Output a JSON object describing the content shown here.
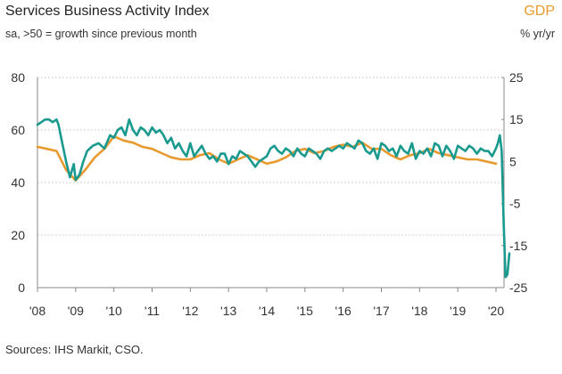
{
  "chart_data": {
    "type": "line",
    "title": "Services Business Activity Index",
    "subtitle": "sa, >50 = growth since previous month",
    "right_axis_title": "GDP",
    "right_axis_subtitle": "% yr/yr",
    "source": "Sources: IHS Markit, CSO.",
    "x_ticks": [
      "'08",
      "'09",
      "'10",
      "'11",
      "'12",
      "'13",
      "'14",
      "'15",
      "'16",
      "'17",
      "'18",
      "'19",
      "'20"
    ],
    "xlim": [
      2008,
      2020.4
    ],
    "left_axis": {
      "ylim": [
        0,
        80
      ],
      "ticks": [
        "0",
        "20",
        "40",
        "60",
        "80"
      ]
    },
    "right_axis": {
      "ylim": [
        -25,
        25
      ],
      "ticks": [
        "-25",
        "-15",
        "-5",
        "5",
        "15",
        "25"
      ]
    },
    "series": [
      {
        "name": "Services Business Activity Index",
        "axis": "left",
        "color": "#1a9a8e",
        "x": [
          2008.0,
          2008.1,
          2008.2,
          2008.3,
          2008.4,
          2008.5,
          2008.55,
          2008.65,
          2008.75,
          2008.85,
          2008.95,
          2009.0,
          2009.1,
          2009.2,
          2009.3,
          2009.45,
          2009.6,
          2009.75,
          2009.9,
          2010.0,
          2010.1,
          2010.2,
          2010.3,
          2010.4,
          2010.5,
          2010.6,
          2010.7,
          2010.8,
          2010.9,
          2011.0,
          2011.1,
          2011.2,
          2011.3,
          2011.4,
          2011.5,
          2011.6,
          2011.7,
          2011.8,
          2011.9,
          2012.0,
          2012.1,
          2012.2,
          2012.3,
          2012.4,
          2012.5,
          2012.6,
          2012.7,
          2012.8,
          2012.9,
          2013.0,
          2013.1,
          2013.2,
          2013.3,
          2013.4,
          2013.5,
          2013.6,
          2013.7,
          2013.8,
          2013.9,
          2014.0,
          2014.1,
          2014.2,
          2014.3,
          2014.4,
          2014.5,
          2014.6,
          2014.7,
          2014.8,
          2014.9,
          2015.0,
          2015.1,
          2015.2,
          2015.3,
          2015.4,
          2015.5,
          2015.6,
          2015.7,
          2015.8,
          2015.9,
          2016.0,
          2016.1,
          2016.2,
          2016.3,
          2016.4,
          2016.5,
          2016.6,
          2016.7,
          2016.8,
          2016.9,
          2017.0,
          2017.1,
          2017.2,
          2017.3,
          2017.4,
          2017.5,
          2017.6,
          2017.7,
          2017.8,
          2017.9,
          2018.0,
          2018.1,
          2018.2,
          2018.3,
          2018.4,
          2018.5,
          2018.6,
          2018.7,
          2018.8,
          2018.9,
          2019.0,
          2019.1,
          2019.2,
          2019.3,
          2019.4,
          2019.5,
          2019.6,
          2019.7,
          2019.8,
          2019.9,
          2020.0,
          2020.05,
          2020.1,
          2020.15,
          2020.2,
          2020.25,
          2020.3,
          2020.35
        ],
        "values": [
          62,
          63,
          64,
          64,
          63,
          64,
          62,
          55,
          48,
          42,
          47,
          41,
          43,
          48,
          52,
          54,
          55,
          53,
          58,
          57,
          60,
          61,
          58,
          64,
          60,
          58,
          61,
          60,
          58,
          61,
          59,
          60,
          58,
          55,
          57,
          53,
          55,
          52,
          50,
          55,
          50,
          52,
          54,
          51,
          49,
          50,
          48,
          51,
          51,
          47,
          50,
          49,
          52,
          51,
          50,
          48,
          46,
          48,
          49,
          50,
          53,
          54,
          52,
          51,
          53,
          52,
          50,
          53,
          51,
          50,
          53,
          52,
          51,
          49,
          52,
          53,
          52,
          53,
          54,
          53,
          55,
          54,
          53,
          56,
          55,
          52,
          51,
          53,
          49,
          55,
          54,
          52,
          53,
          50,
          54,
          52,
          51,
          55,
          49,
          52,
          51,
          53,
          50,
          55,
          54,
          50,
          54,
          52,
          49,
          54,
          53,
          52,
          54,
          53,
          51,
          53,
          52,
          52,
          50,
          53,
          55,
          58,
          52,
          25,
          4,
          5,
          13
        ]
      },
      {
        "name": "GDP",
        "axis": "right",
        "color": "#e89a2e",
        "x": [
          2008.0,
          2008.25,
          2008.5,
          2008.75,
          2009.0,
          2009.25,
          2009.5,
          2009.75,
          2010.0,
          2010.25,
          2010.5,
          2010.75,
          2011.0,
          2011.25,
          2011.5,
          2011.75,
          2012.0,
          2012.25,
          2012.5,
          2012.75,
          2013.0,
          2013.25,
          2013.5,
          2013.75,
          2014.0,
          2014.25,
          2014.5,
          2014.75,
          2015.0,
          2015.25,
          2015.5,
          2015.75,
          2016.0,
          2016.25,
          2016.5,
          2016.75,
          2017.0,
          2017.25,
          2017.5,
          2017.75,
          2018.0,
          2018.25,
          2018.5,
          2018.75,
          2019.0,
          2019.25,
          2019.5,
          2019.75,
          2020.0
        ],
        "values": [
          8.5,
          8.0,
          7.5,
          3.0,
          0.5,
          3.0,
          6.0,
          8.0,
          11.0,
          10.0,
          9.5,
          8.5,
          8.0,
          7.0,
          6.0,
          5.5,
          5.5,
          6.5,
          7.0,
          5.5,
          4.5,
          5.5,
          6.5,
          5.5,
          4.5,
          5.0,
          6.0,
          7.5,
          8.0,
          7.0,
          7.5,
          8.5,
          9.0,
          8.5,
          9.5,
          8.0,
          8.0,
          6.5,
          5.5,
          6.5,
          7.0,
          8.0,
          7.0,
          6.5,
          6.0,
          5.5,
          5.5,
          5.0,
          4.5
        ]
      }
    ]
  }
}
